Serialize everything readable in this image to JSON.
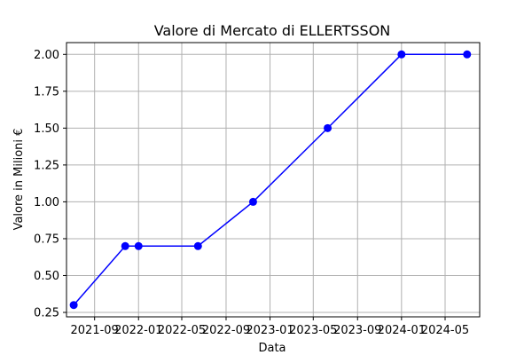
{
  "chart_data": {
    "type": "line",
    "title": "Valore di Mercato di ELLERTSSON",
    "xlabel": "Data",
    "ylabel": "Valore in Milioni €",
    "x_ticks": [
      "2021-09",
      "2022-01",
      "2022-05",
      "2022-09",
      "2023-01",
      "2023-05",
      "2023-09",
      "2024-01",
      "2024-05"
    ],
    "y_ticks": [
      "0.25",
      "0.50",
      "0.75",
      "1.00",
      "1.25",
      "1.50",
      "1.75",
      "2.00"
    ],
    "xlim": [
      "2021-06-15",
      "2024-08-05"
    ],
    "ylim": [
      0.22,
      2.08
    ],
    "grid": true,
    "series": [
      {
        "color": "#0000ff",
        "marker": "circle",
        "x": [
          "2021-07-05",
          "2021-11-25",
          "2022-01-01",
          "2022-06-15",
          "2022-11-15",
          "2023-06-10",
          "2024-01-01",
          "2024-07-01"
        ],
        "y": [
          0.3,
          0.7,
          0.7,
          0.7,
          1.0,
          1.5,
          2.0,
          2.0
        ]
      }
    ]
  }
}
